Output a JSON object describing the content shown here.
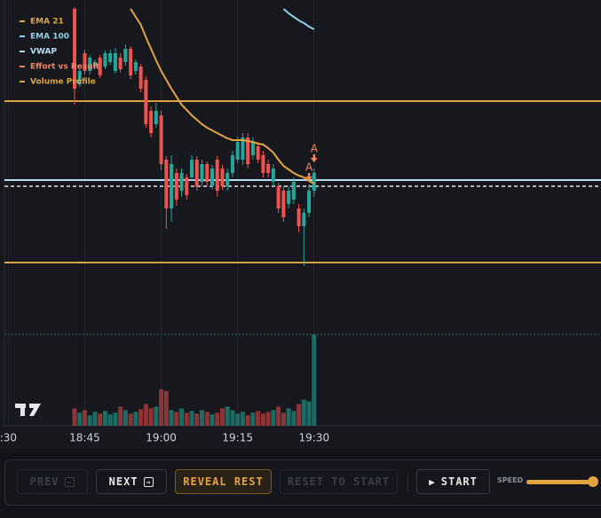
{
  "chart_data": {
    "type": "candlestick",
    "x": [
      43,
      44,
      45,
      46,
      47,
      48,
      49,
      50,
      51,
      52,
      53,
      54,
      55,
      56,
      57,
      58,
      59,
      60,
      61,
      62,
      63,
      64,
      65,
      66,
      67,
      68,
      69,
      70,
      71,
      72,
      73,
      74,
      75,
      76,
      77,
      78,
      79,
      80,
      81,
      82,
      83,
      84,
      85,
      86,
      87,
      88,
      89,
      90
    ],
    "open": [
      362,
      277,
      312,
      292,
      297,
      307,
      297,
      302,
      292,
      307,
      302,
      317,
      292,
      297,
      282,
      247,
      232,
      242,
      192,
      137,
      177,
      157,
      172,
      172,
      192,
      167,
      187,
      162,
      192,
      182,
      162,
      177,
      192,
      192,
      217,
      197,
      207,
      197,
      187,
      167,
      162,
      157,
      142,
      147,
      137,
      117,
      132,
      157
    ],
    "high": [
      364,
      295,
      316,
      310,
      305,
      310,
      315,
      316,
      318,
      312,
      322,
      320,
      305,
      300,
      286,
      252,
      256,
      247,
      196,
      197,
      182,
      182,
      176,
      197,
      196,
      192,
      190,
      186,
      196,
      186,
      182,
      202,
      218,
      222,
      222,
      217,
      212,
      202,
      192,
      187,
      166,
      162,
      162,
      172,
      142,
      137,
      164,
      182
    ],
    "low": [
      254,
      274,
      288,
      288,
      294,
      284,
      294,
      299,
      289,
      290,
      298,
      283,
      288,
      268,
      228,
      217,
      228,
      180,
      114,
      122,
      140,
      150,
      147,
      168,
      157,
      162,
      162,
      158,
      150,
      158,
      157,
      172,
      188,
      186,
      182,
      192,
      188,
      172,
      172,
      162,
      132,
      122,
      137,
      142,
      110,
      72,
      127,
      150
    ],
    "close": [
      272,
      292,
      292,
      307,
      302,
      287,
      312,
      312,
      312,
      294,
      317,
      287,
      302,
      272,
      232,
      222,
      247,
      187,
      137,
      187,
      147,
      177,
      152,
      192,
      162,
      187,
      167,
      182,
      157,
      162,
      177,
      197,
      212,
      217,
      187,
      212,
      192,
      177,
      177,
      182,
      137,
      127,
      157,
      167,
      117,
      132,
      157,
      177
    ],
    "volume": [
      20,
      15,
      18,
      12,
      16,
      14,
      17,
      13,
      15,
      22,
      18,
      14,
      16,
      19,
      25,
      20,
      22,
      42,
      40,
      18,
      16,
      20,
      15,
      17,
      14,
      18,
      16,
      13,
      15,
      20,
      22,
      18,
      14,
      16,
      12,
      15,
      17,
      14,
      16,
      18,
      22,
      15,
      20,
      17,
      25,
      30,
      28,
      105
    ],
    "up_color": "#26a69a",
    "down_color": "#ef5350",
    "volume_up_color": "#1d6b65",
    "volume_down_color": "#8c3436",
    "xlim": [
      29.24,
      146.3
    ],
    "ylim": [
      0,
      372
    ],
    "volume_ylim": [
      0,
      105
    ],
    "xticks": [
      {
        "value": 30,
        "label": ":30"
      },
      {
        "value": 45,
        "label": "18:45"
      },
      {
        "value": 60,
        "label": "19:00"
      },
      {
        "value": 75,
        "label": "19:15"
      },
      {
        "value": 90,
        "label": "19:30"
      }
    ],
    "series": [
      {
        "name": "EMA 21",
        "color": "#e3a33f",
        "values": [
          null,
          null,
          null,
          null,
          null,
          null,
          null,
          null,
          null,
          null,
          null,
          362,
          353,
          344,
          330,
          317,
          304,
          292,
          282,
          272,
          263,
          254,
          248,
          242,
          237,
          232,
          228,
          225,
          222,
          219,
          216,
          214,
          214,
          214,
          213,
          212,
          210,
          209,
          205,
          200,
          192,
          185,
          181,
          177,
          174,
          172,
          168,
          165
        ]
      },
      {
        "name": "EMA 100",
        "color": "#8fd0ea",
        "values": [
          null,
          null,
          null,
          null,
          null,
          null,
          null,
          null,
          null,
          null,
          null,
          null,
          null,
          null,
          null,
          null,
          null,
          null,
          null,
          null,
          null,
          null,
          null,
          null,
          null,
          null,
          null,
          null,
          null,
          null,
          null,
          null,
          null,
          null,
          null,
          null,
          null,
          null,
          null,
          null,
          null,
          362,
          357,
          353,
          349,
          346,
          342,
          339
        ]
      },
      {
        "name": "VWAP",
        "color": "#b9dcf2",
        "levels": [
          169
        ]
      },
      {
        "name": "Effort vs Result",
        "color": "#f4845f",
        "markers": [
          {
            "x": 89,
            "value": 168,
            "label": "A"
          },
          {
            "x": 90,
            "value": 189,
            "label": "A"
          }
        ]
      },
      {
        "name": "Volume Profile",
        "color": "#d9a441",
        "levels": [
          258,
          76
        ]
      }
    ],
    "price_line": 162,
    "price_line_color": "#e6e6e6"
  },
  "controls": {
    "prev": "PREV",
    "next": "NEXT",
    "reveal": "REVEAL REST",
    "reset": "RESET TO START",
    "start": "START",
    "speed": "SPEED"
  }
}
